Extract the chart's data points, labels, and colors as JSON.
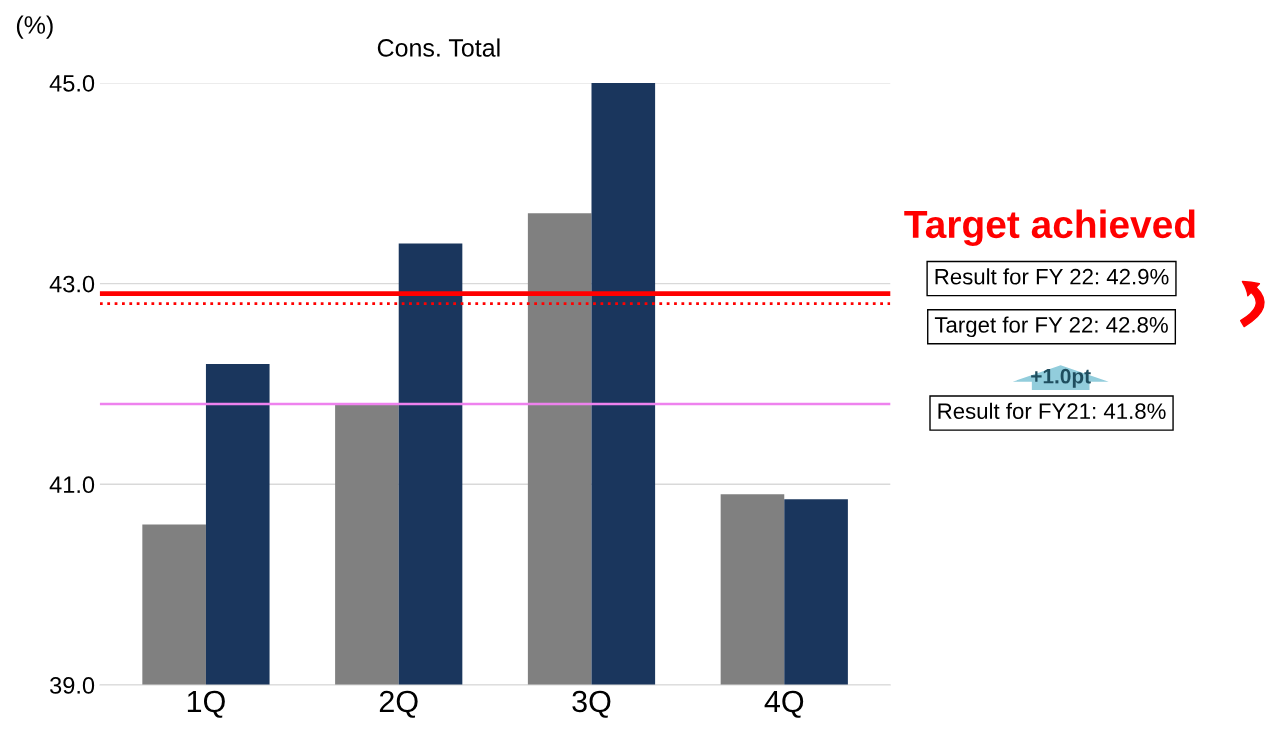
{
  "chart_data": {
    "type": "bar",
    "title": "Cons. Total",
    "ylabel": "(%)",
    "categories": [
      "1Q",
      "2Q",
      "3Q",
      "4Q"
    ],
    "series": [
      {
        "color": "#808080",
        "values": [
          40.6,
          41.8,
          43.7,
          40.9
        ]
      },
      {
        "color": "#1a365d",
        "values": [
          42.2,
          43.4,
          45.0,
          40.85
        ]
      }
    ],
    "ylim": [
      39,
      45
    ],
    "yticks": [
      {
        "value": 39,
        "label": "39.0"
      },
      {
        "value": 41,
        "label": "41.0"
      },
      {
        "value": 43,
        "label": "43.0"
      },
      {
        "value": 45,
        "label": "45.0"
      }
    ],
    "grid": "y",
    "ref_lines": [
      {
        "axis": "y",
        "value": 42.9,
        "label": "Result for FY 22: 42.9%",
        "color": "#ff0000",
        "line_style": "solid"
      },
      {
        "axis": "y",
        "value": 42.8,
        "label": "Target for FY 22: 42.8%",
        "color": "#ff0000",
        "line_style": "dotted"
      },
      {
        "axis": "y",
        "value": 41.8,
        "label": "Result for FY21: 41.8%",
        "color": "#ee82ee",
        "line_style": "solid"
      }
    ],
    "annotations": [
      "Target achieved",
      "+1.0pt"
    ]
  }
}
